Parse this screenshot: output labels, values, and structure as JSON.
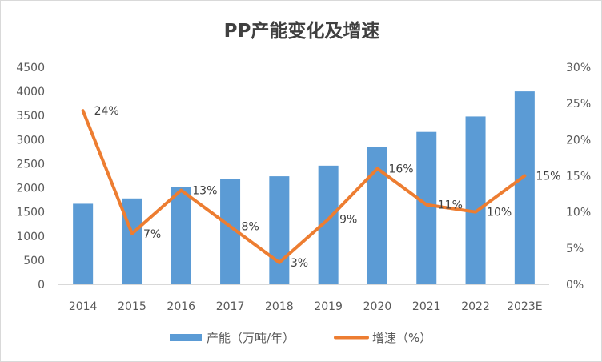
{
  "chart_data": {
    "type": "bar",
    "title": "PP产能变化及增速",
    "categories": [
      "2014",
      "2015",
      "2016",
      "2017",
      "2018",
      "2019",
      "2020",
      "2021",
      "2022",
      "2023E"
    ],
    "series": [
      {
        "name": "产能（万吨/年）",
        "type": "bar",
        "axis": "left",
        "color": "#5b9bd5",
        "values": [
          1670,
          1780,
          2020,
          2180,
          2240,
          2460,
          2840,
          3160,
          3480,
          4000
        ]
      },
      {
        "name": "增速（%）",
        "type": "line",
        "axis": "right",
        "color": "#ed7d31",
        "values": [
          24,
          7,
          13,
          8,
          3,
          9,
          16,
          11,
          10,
          15
        ],
        "labels": [
          "24%",
          "7%",
          "13%",
          "8%",
          "3%",
          "9%",
          "16%",
          "11%",
          "10%",
          "15%"
        ]
      }
    ],
    "y_left": {
      "range": [
        0,
        4500
      ],
      "ticks": [
        0,
        500,
        1000,
        1500,
        2000,
        2500,
        3000,
        3500,
        4000,
        4500
      ],
      "tick_labels": [
        "0",
        "500",
        "1000",
        "1500",
        "2000",
        "2500",
        "3000",
        "3500",
        "4000",
        "4500"
      ]
    },
    "y_right": {
      "range": [
        0,
        30
      ],
      "ticks": [
        0,
        5,
        10,
        15,
        20,
        25,
        30
      ],
      "tick_labels": [
        "0%",
        "5%",
        "10%",
        "15%",
        "20%",
        "25%",
        "30%"
      ]
    },
    "grid": false,
    "legend": "bottom"
  }
}
